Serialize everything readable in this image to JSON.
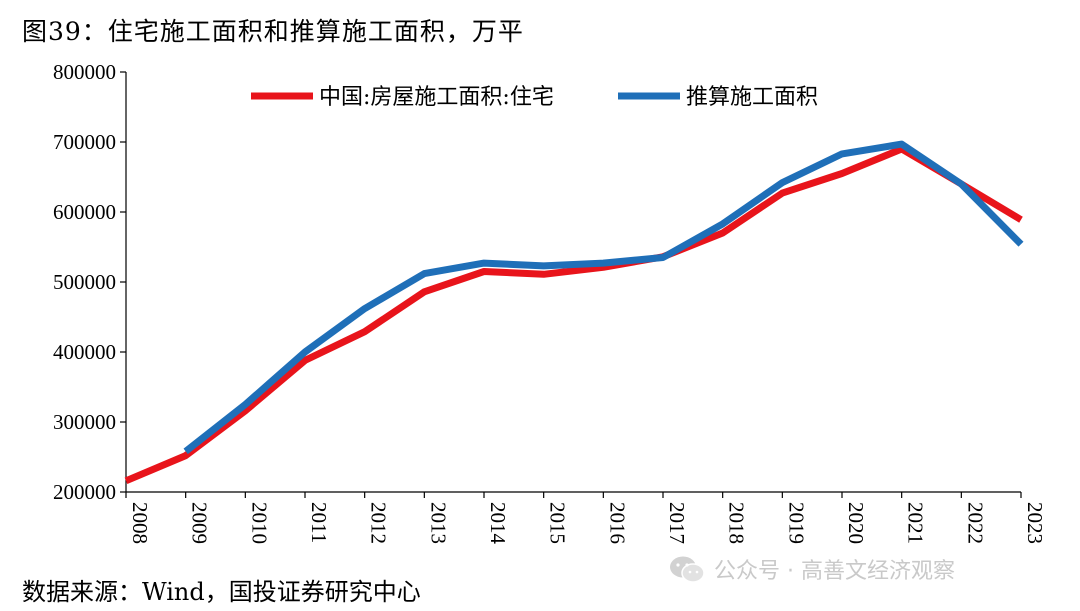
{
  "title": "图39：住宅施工面积和推算施工面积，万平",
  "source": "数据来源：Wind，国投证券研究中心",
  "watermark": "公众号 · 高善文经济观察",
  "chart_data": {
    "type": "line",
    "title": "图39：住宅施工面积和推算施工面积，万平",
    "xlabel": "",
    "ylabel": "",
    "x": [
      "2008",
      "2009",
      "2010",
      "2011",
      "2012",
      "2013",
      "2014",
      "2015",
      "2016",
      "2017",
      "2018",
      "2019",
      "2020",
      "2021",
      "2022",
      "2023"
    ],
    "ylim": [
      200000,
      800000
    ],
    "yticks": [
      200000,
      300000,
      400000,
      500000,
      600000,
      700000,
      800000
    ],
    "grid": false,
    "legend_position": "top",
    "series": [
      {
        "name": "中国:房屋施工面积:住宅",
        "color": "#e8141b",
        "values": [
          216000,
          252000,
          316000,
          388000,
          429000,
          486000,
          515000,
          511000,
          521000,
          536000,
          570000,
          627000,
          655000,
          690000,
          640000,
          589000
        ]
      },
      {
        "name": "推算施工面积",
        "color": "#1f6fb8",
        "values": [
          null,
          258000,
          325000,
          400000,
          462000,
          512000,
          527000,
          523000,
          527000,
          535000,
          583000,
          642000,
          683000,
          697000,
          640000,
          554000
        ]
      }
    ]
  }
}
